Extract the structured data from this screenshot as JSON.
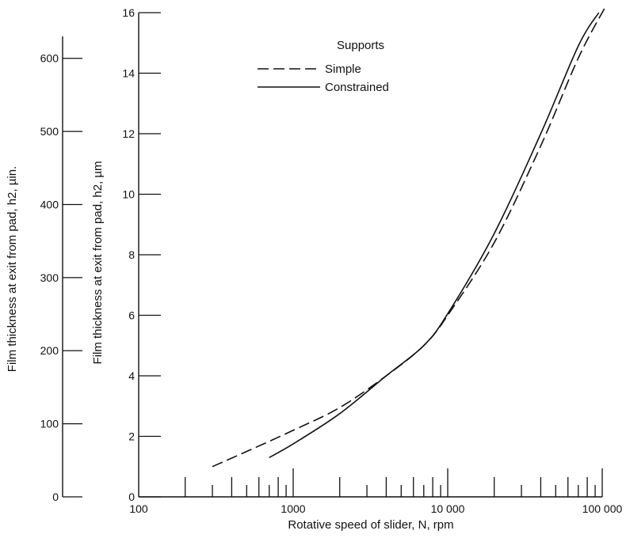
{
  "chart_data": {
    "type": "line",
    "x_scale": "log",
    "xlabel": "Rotative speed of slider, N, rpm",
    "xlim": [
      100,
      100000
    ],
    "x_tick_labels": [
      {
        "value": 100,
        "label": "100"
      },
      {
        "value": 1000,
        "label": "1000"
      },
      {
        "value": 10000,
        "label": "10 000"
      },
      {
        "value": 100000,
        "label": "100 000"
      }
    ],
    "ylabel_primary": "Film thickness at exit from pad, h2, µm",
    "ylim_primary": [
      0,
      16
    ],
    "y_ticks_primary": [
      "0",
      "2",
      "4",
      "6",
      "8",
      "10",
      "12",
      "14",
      "16"
    ],
    "ylabel_secondary": "Film thickness at exit from pad, h2, µin.",
    "ylim_secondary": [
      0,
      630
    ],
    "y_ticks_secondary": [
      "0",
      "100",
      "200",
      "300",
      "400",
      "500",
      "600"
    ],
    "legend": {
      "title": "Supports",
      "position": "top-center",
      "entries": [
        {
          "label": "Simple",
          "style": "dashed"
        },
        {
          "label": "Constrained",
          "style": "solid"
        }
      ]
    },
    "series": [
      {
        "name": "Simple",
        "style": "dashed",
        "points": [
          [
            300,
            1.0
          ],
          [
            500,
            1.5
          ],
          [
            1000,
            2.2
          ],
          [
            2000,
            2.95
          ],
          [
            4000,
            4.0
          ],
          [
            7000,
            5.0
          ],
          [
            10000,
            6.0
          ],
          [
            20000,
            8.4
          ],
          [
            40000,
            11.6
          ],
          [
            70000,
            14.5
          ],
          [
            105000,
            16.2
          ]
        ]
      },
      {
        "name": "Constrained",
        "style": "solid",
        "points": [
          [
            700,
            1.3
          ],
          [
            1000,
            1.75
          ],
          [
            2000,
            2.75
          ],
          [
            4000,
            4.0
          ],
          [
            7000,
            5.0
          ],
          [
            10000,
            6.05
          ],
          [
            20000,
            8.7
          ],
          [
            40000,
            12.0
          ],
          [
            70000,
            14.9
          ],
          [
            95000,
            16.0
          ]
        ]
      }
    ]
  }
}
